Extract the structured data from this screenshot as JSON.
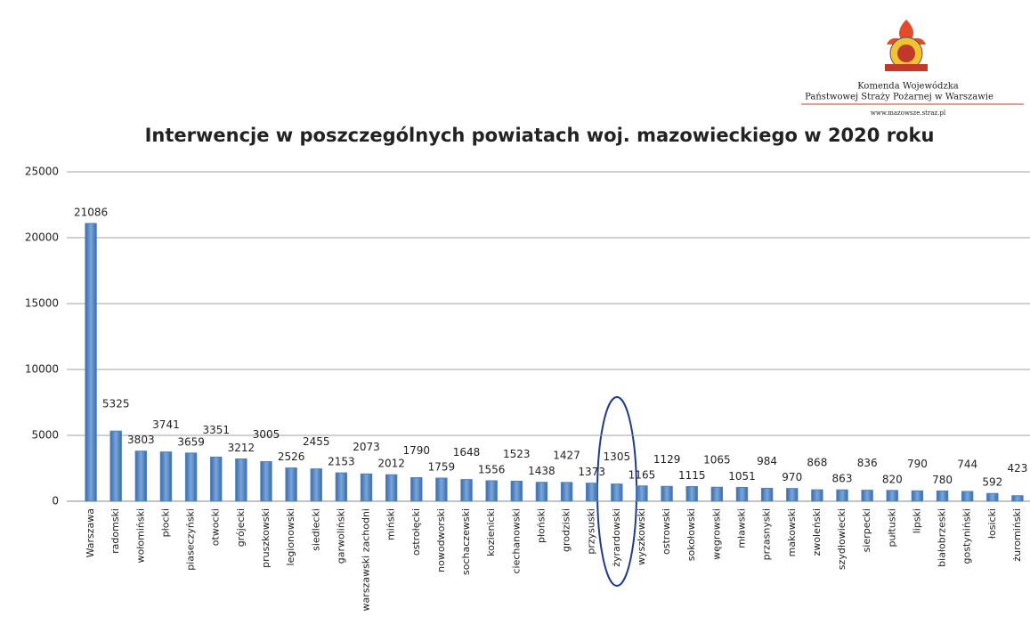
{
  "header": {
    "org_line1": "Komenda Wojewódzka",
    "org_line2": "Państwowej Straży Pożarnej w Warszawie",
    "website": "www.mazowsze.straz.pl"
  },
  "chart_data": {
    "type": "bar",
    "title": "Interwencje w poszczególnych powiatach woj. mazowieckiego w 2020  roku",
    "categories": [
      "Warszawa",
      "radomski",
      "wołomiński",
      "płocki",
      "piaseczyński",
      "otwocki",
      "grójecki",
      "pruszkowski",
      "legionowski",
      "siedlecki",
      "garwoliński",
      "warszawski zachodni",
      "miński",
      "ostrołęcki",
      "nowodworski",
      "sochaczewski",
      "kozienicki",
      "ciechanowski",
      "płoński",
      "grodziski",
      "przysuski",
      "żyrardowski",
      "wyszkowski",
      "ostrowski",
      "sokołowski",
      "węgrowski",
      "mławski",
      "przasnyski",
      "makowski",
      "zwoleński",
      "szydłowiecki",
      "sierpecki",
      "pułtuski",
      "lipski",
      "białobrzeski",
      "gostyniński",
      "łosicki",
      "żuromiński"
    ],
    "values": [
      21086,
      5325,
      3803,
      3741,
      3659,
      3351,
      3212,
      3005,
      2526,
      2455,
      2153,
      2073,
      2012,
      1790,
      1759,
      1648,
      1556,
      1523,
      1438,
      1427,
      1373,
      1305,
      1165,
      1129,
      1115,
      1065,
      1051,
      984,
      970,
      868,
      863,
      836,
      820,
      790,
      780,
      744,
      592,
      423
    ],
    "color": "#4f81bd",
    "ylim": [
      0,
      25000
    ],
    "yticks": [
      0,
      5000,
      10000,
      15000,
      20000,
      25000
    ],
    "grid": true
  }
}
